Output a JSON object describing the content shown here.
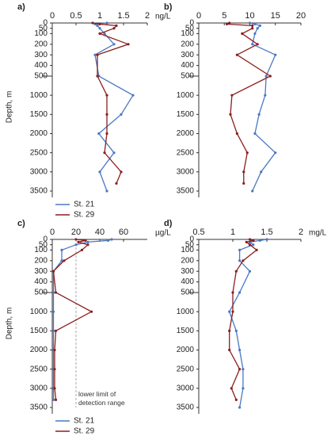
{
  "chart_data": [
    {
      "type": "line",
      "label": "a)",
      "ylabel": "Depth, m",
      "unit": "ng/L",
      "xlim": [
        0,
        2
      ],
      "xticks": [
        0,
        0.5,
        1,
        1.5,
        2
      ],
      "ylim": [
        0,
        3500
      ],
      "yticks": [
        0,
        50,
        100,
        200,
        300,
        400,
        500,
        1000,
        1500,
        2000,
        2500,
        3000,
        3500
      ],
      "ybreak": 500,
      "y_inverted": true,
      "series": [
        {
          "name": "St. 21",
          "color": "#4a78c2",
          "depth": [
            0,
            10,
            25,
            50,
            100,
            200,
            300,
            500,
            1000,
            1500,
            2000,
            2500,
            3000,
            3500
          ],
          "values": [
            1.15,
            0.9,
            0.95,
            1.0,
            1.1,
            1.3,
            0.9,
            0.98,
            1.7,
            1.45,
            0.98,
            1.3,
            1.0,
            1.15
          ]
        },
        {
          "name": "St. 29",
          "color": "#8b1e1e",
          "depth": [
            0,
            10,
            25,
            50,
            100,
            200,
            300,
            500,
            1000,
            1500,
            2000,
            2500,
            3000,
            3300
          ],
          "values": [
            0.85,
            1.0,
            1.35,
            1.3,
            1.0,
            1.6,
            0.95,
            0.95,
            1.15,
            1.15,
            1.15,
            1.1,
            1.45,
            1.35
          ]
        }
      ]
    },
    {
      "type": "line",
      "label": "b)",
      "xlim": [
        0,
        20
      ],
      "xticks": [
        0,
        5,
        10,
        15,
        20
      ],
      "ylim": [
        0,
        3500
      ],
      "yticks": [
        0,
        50,
        100,
        200,
        300,
        400,
        500,
        1000,
        1500,
        2000,
        2500,
        3000,
        3500
      ],
      "ybreak": 500,
      "y_inverted": true,
      "series": [
        {
          "color": "#4a78c2",
          "depth": [
            0,
            10,
            25,
            50,
            100,
            200,
            300,
            500,
            1000,
            1500,
            2000,
            2500,
            3000,
            3500
          ],
          "values": [
            10,
            11,
            12,
            11.5,
            11,
            10.5,
            15,
            13.2,
            13,
            11.8,
            11,
            15,
            12.2,
            10.5
          ]
        },
        {
          "color": "#8b1e1e",
          "depth": [
            0,
            10,
            25,
            50,
            100,
            200,
            300,
            500,
            1000,
            1500,
            2000,
            2500,
            3000,
            3300
          ],
          "values": [
            6,
            5.5,
            10.5,
            10.5,
            8.5,
            11.5,
            7.5,
            14,
            6.5,
            6.2,
            7.5,
            9.5,
            8.8,
            8.8
          ]
        }
      ]
    },
    {
      "type": "line",
      "label": "c)",
      "ylabel": "Depth, m",
      "unit": "µg/L",
      "xlim": [
        0,
        80
      ],
      "xticks": [
        0,
        20,
        40,
        60
      ],
      "ylim": [
        0,
        3500
      ],
      "yticks": [
        0,
        50,
        100,
        200,
        300,
        400,
        500,
        1000,
        1500,
        2000,
        2500,
        3000,
        3500
      ],
      "ybreak": 500,
      "y_inverted": true,
      "annotation": {
        "text": "lower limit of detection range",
        "x": 20
      },
      "series": [
        {
          "name": "St. 21",
          "color": "#4a78c2",
          "depth": [
            0,
            10,
            25,
            50,
            100,
            200,
            300,
            500,
            1000,
            1500,
            2000,
            2500,
            3000,
            3300
          ],
          "values": [
            50,
            47,
            30,
            20,
            8,
            8,
            1,
            1,
            1,
            1,
            1,
            1,
            1,
            1
          ]
        },
        {
          "name": "St. 29",
          "color": "#8b1e1e",
          "depth": [
            0,
            10,
            25,
            50,
            100,
            200,
            300,
            500,
            1000,
            1500,
            2000,
            2500,
            3000,
            3300
          ],
          "values": [
            20,
            28,
            22,
            30,
            25,
            10,
            1,
            3,
            33,
            3,
            2,
            2,
            2,
            3
          ]
        }
      ]
    },
    {
      "type": "line",
      "label": "d)",
      "unit": "mg/L",
      "xlim": [
        0.5,
        2
      ],
      "xticks": [
        0.5,
        1,
        1.5,
        2
      ],
      "ylim": [
        0,
        3500
      ],
      "yticks": [
        0,
        50,
        100,
        200,
        300,
        400,
        500,
        1000,
        1500,
        2000,
        2500,
        3000,
        3500
      ],
      "ybreak": 500,
      "y_inverted": true,
      "series": [
        {
          "color": "#4a78c2",
          "depth": [
            0,
            10,
            25,
            50,
            100,
            200,
            300,
            500,
            1000,
            1500,
            2000,
            2500,
            3000,
            3500
          ],
          "values": [
            1.5,
            1.4,
            1.25,
            1.3,
            1.1,
            1.1,
            1.25,
            1.1,
            0.95,
            1.05,
            1.1,
            1.15,
            1.15,
            1.1
          ]
        },
        {
          "color": "#8b1e1e",
          "depth": [
            0,
            10,
            25,
            50,
            100,
            200,
            300,
            500,
            1000,
            1500,
            2000,
            2500,
            3000,
            3300
          ],
          "values": [
            1.25,
            1.3,
            1.2,
            1.25,
            1.35,
            1.15,
            1.05,
            1.0,
            1.0,
            0.95,
            0.95,
            1.1,
            0.98,
            1.05
          ]
        }
      ]
    }
  ]
}
